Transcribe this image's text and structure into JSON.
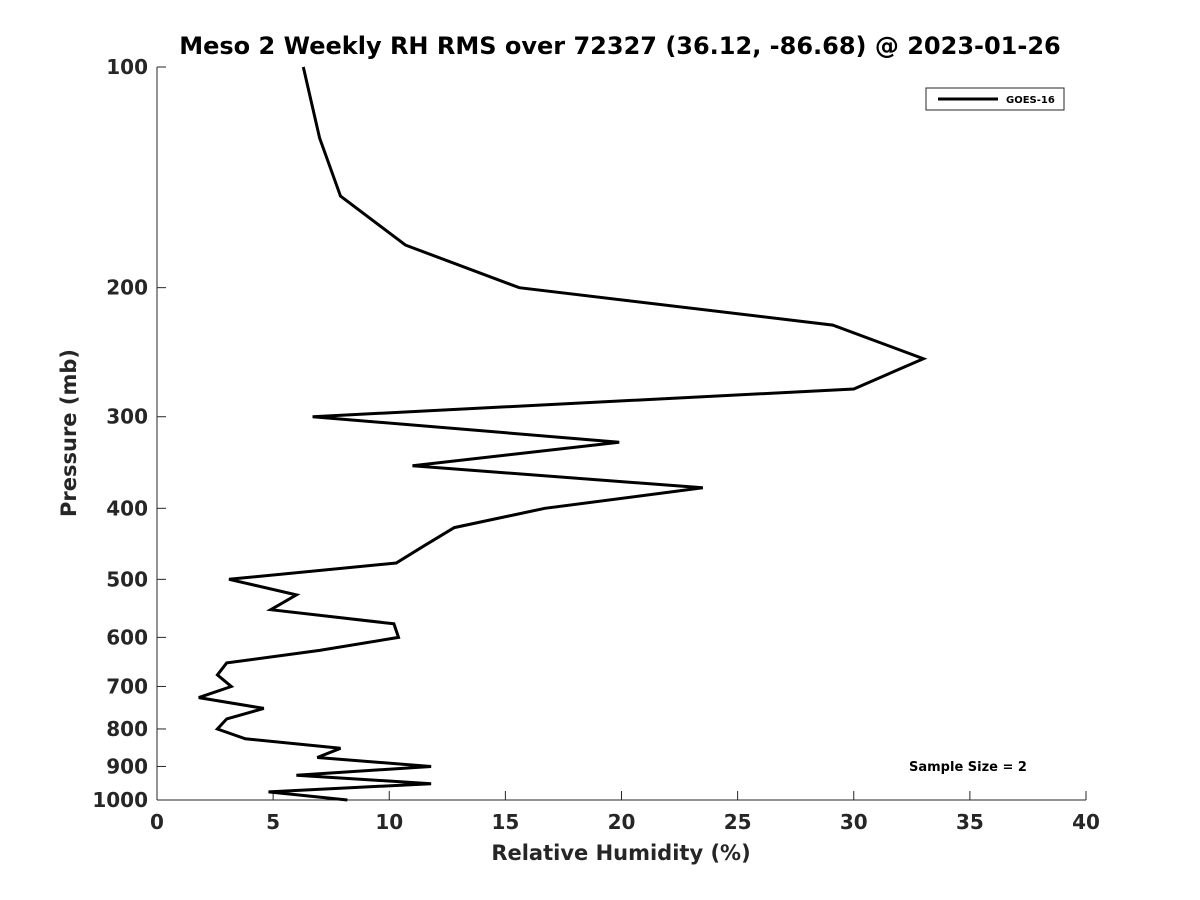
{
  "chart_data": {
    "type": "line",
    "title": "Meso 2 Weekly RH RMS over 72327 (36.12, -86.68) @ 2023-01-26",
    "xlabel": "Relative Humidity (%)",
    "ylabel": "Pressure (mb)",
    "xlim": [
      0,
      40
    ],
    "ylim": [
      1000,
      100
    ],
    "yscale": "log",
    "xticks": [
      0,
      5,
      10,
      15,
      20,
      25,
      30,
      35,
      40
    ],
    "xtick_labels": [
      "0",
      "5",
      "10",
      "15",
      "20",
      "25",
      "30",
      "35",
      "40"
    ],
    "yticks": [
      100,
      200,
      300,
      400,
      500,
      600,
      700,
      800,
      900,
      1000
    ],
    "ytick_labels": [
      "100",
      "200",
      "300",
      "400",
      "500",
      "600",
      "700",
      "800",
      "900",
      "1000"
    ],
    "grid": false,
    "legend_position": "top-right",
    "annotation": "Sample Size = 2",
    "series": [
      {
        "name": "GOES-16",
        "color": "#000000",
        "points": [
          {
            "rh": 6.3,
            "p": 100
          },
          {
            "rh": 7.0,
            "p": 125
          },
          {
            "rh": 7.9,
            "p": 150
          },
          {
            "rh": 10.7,
            "p": 175
          },
          {
            "rh": 15.6,
            "p": 200
          },
          {
            "rh": 29.1,
            "p": 225
          },
          {
            "rh": 33.0,
            "p": 250
          },
          {
            "rh": 30.0,
            "p": 275
          },
          {
            "rh": 6.7,
            "p": 300
          },
          {
            "rh": 19.9,
            "p": 325
          },
          {
            "rh": 11.0,
            "p": 350
          },
          {
            "rh": 23.5,
            "p": 375
          },
          {
            "rh": 16.7,
            "p": 400
          },
          {
            "rh": 12.8,
            "p": 425
          },
          {
            "rh": 11.5,
            "p": 450
          },
          {
            "rh": 10.3,
            "p": 475
          },
          {
            "rh": 3.1,
            "p": 500
          },
          {
            "rh": 6.0,
            "p": 525
          },
          {
            "rh": 4.9,
            "p": 550
          },
          {
            "rh": 10.2,
            "p": 575
          },
          {
            "rh": 10.4,
            "p": 600
          },
          {
            "rh": 7.0,
            "p": 625
          },
          {
            "rh": 3.0,
            "p": 650
          },
          {
            "rh": 2.6,
            "p": 675
          },
          {
            "rh": 3.2,
            "p": 700
          },
          {
            "rh": 1.8,
            "p": 725
          },
          {
            "rh": 4.6,
            "p": 750
          },
          {
            "rh": 3.0,
            "p": 775
          },
          {
            "rh": 2.6,
            "p": 800
          },
          {
            "rh": 3.8,
            "p": 825
          },
          {
            "rh": 7.9,
            "p": 850
          },
          {
            "rh": 6.9,
            "p": 875
          },
          {
            "rh": 11.8,
            "p": 900
          },
          {
            "rh": 6.0,
            "p": 925
          },
          {
            "rh": 11.8,
            "p": 950
          },
          {
            "rh": 4.8,
            "p": 975
          },
          {
            "rh": 8.2,
            "p": 1000
          }
        ]
      }
    ]
  }
}
